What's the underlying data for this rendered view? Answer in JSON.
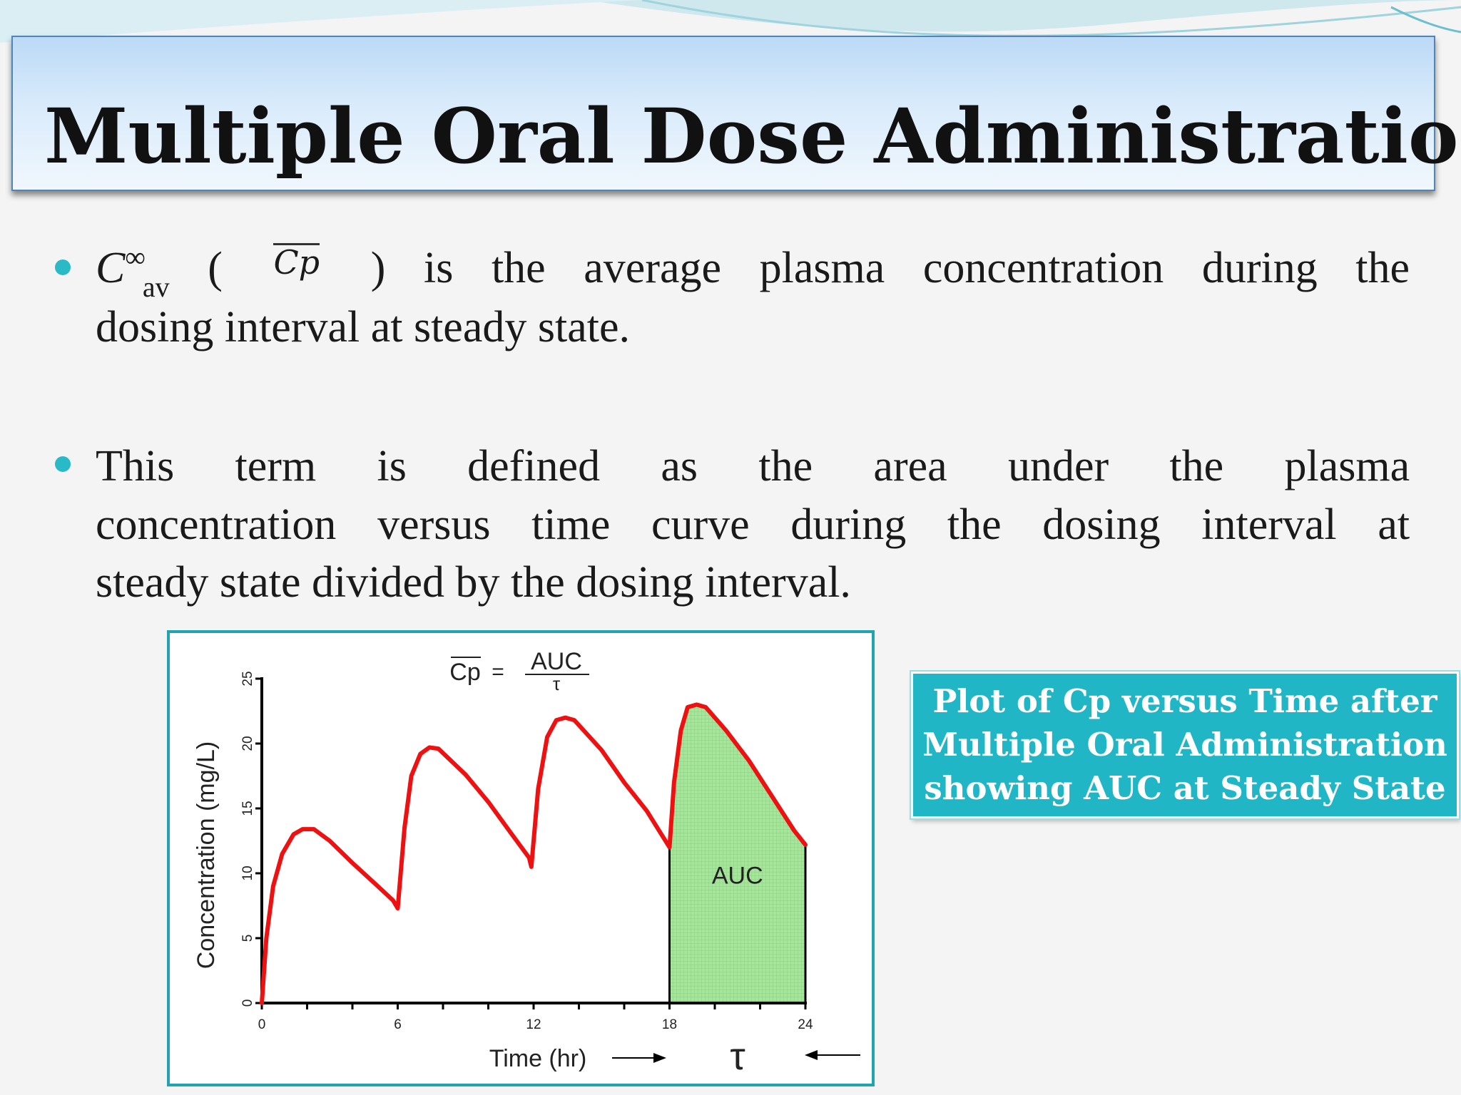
{
  "slide": {
    "title": "Multiple Oral Dose Administration",
    "bullets": [
      {
        "symbol": "C",
        "symbol_sup": "∞",
        "symbol_sub": "av",
        "open_paren": "(",
        "cp_bar": "Cp",
        "close_paren": ")",
        "line1_words": [
          "is",
          "the",
          "average",
          "plasma",
          "concentration",
          "during",
          "the"
        ],
        "line2": "dosing interval at steady state."
      },
      {
        "line1_words": [
          "This",
          "term",
          "is",
          "defined",
          "as",
          "the",
          "area",
          "under",
          "the",
          "plasma"
        ],
        "line2_words": [
          "concentration",
          "versus",
          "time",
          "curve",
          "during",
          "the",
          "dosing",
          "interval",
          "at"
        ],
        "line3": "steady state divided by the dosing interval."
      }
    ],
    "caption_lines": [
      "Plot of Cp versus Time after",
      "Multiple Oral Administration",
      "showing AUC at Steady State"
    ],
    "colors": {
      "accent": "#20b6c6",
      "curve": "#ee1111",
      "auc_fill": "#a6e69a"
    }
  },
  "chart_data": {
    "type": "line",
    "equation": {
      "lhs": "Cp",
      "eq": "=",
      "numerator": "AUC",
      "denominator": "τ"
    },
    "xlabel": "Time (hr)",
    "ylabel": "Concentration (mg/L)",
    "xlim": [
      0,
      24
    ],
    "ylim": [
      0,
      25
    ],
    "x_ticks": [
      "0",
      "6",
      "12",
      "18",
      "24"
    ],
    "y_ticks": [
      "0",
      "5",
      "10",
      "15",
      "20",
      "25"
    ],
    "auc_label": "AUC",
    "tau_label": "τ",
    "shaded_interval": [
      18,
      24
    ],
    "series": [
      {
        "points": [
          [
            0,
            0
          ],
          [
            0.2,
            5
          ],
          [
            0.5,
            9
          ],
          [
            0.9,
            11.5
          ],
          [
            1.4,
            13
          ],
          [
            1.8,
            13.4
          ],
          [
            2.3,
            13.4
          ],
          [
            3,
            12.5
          ],
          [
            4,
            10.8
          ],
          [
            5,
            9.2
          ],
          [
            5.8,
            7.9
          ],
          [
            6,
            7.3
          ],
          [
            6.3,
            13.5
          ],
          [
            6.6,
            17.5
          ],
          [
            7,
            19.2
          ],
          [
            7.4,
            19.7
          ],
          [
            7.8,
            19.6
          ],
          [
            9,
            17.6
          ],
          [
            10,
            15.5
          ],
          [
            11,
            13.1
          ],
          [
            11.8,
            11.2
          ],
          [
            11.9,
            10.5
          ],
          [
            12.2,
            16.5
          ],
          [
            12.6,
            20.5
          ],
          [
            13,
            21.8
          ],
          [
            13.4,
            22
          ],
          [
            13.8,
            21.8
          ],
          [
            15,
            19.5
          ],
          [
            16,
            17
          ],
          [
            17,
            14.8
          ],
          [
            18,
            12
          ],
          [
            18.2,
            17
          ],
          [
            18.5,
            21
          ],
          [
            18.8,
            22.8
          ],
          [
            19.2,
            23
          ],
          [
            19.6,
            22.8
          ],
          [
            20.5,
            21
          ],
          [
            21.5,
            18.7
          ],
          [
            22.5,
            16
          ],
          [
            23.5,
            13.3
          ],
          [
            24,
            12.2
          ]
        ]
      }
    ]
  }
}
